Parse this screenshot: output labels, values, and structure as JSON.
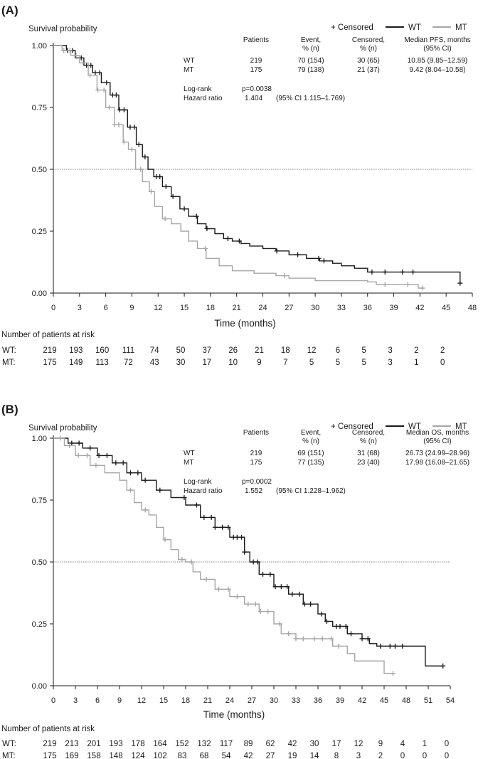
{
  "chart_data": [
    {
      "type": "line",
      "panel_label": "(A)",
      "ylabel": "Survival probability",
      "xlabel": "Time (months)",
      "xlim": [
        0,
        48
      ],
      "ylim": [
        0,
        1
      ],
      "xticks": [
        0,
        3,
        6,
        9,
        12,
        15,
        18,
        21,
        24,
        27,
        30,
        33,
        36,
        39,
        42,
        45,
        48
      ],
      "yticks": [
        "0.00",
        "0.25",
        "0.50",
        "0.75",
        "1.00"
      ],
      "reference_line_y": 0.5,
      "legend": {
        "censored": "+ Censored",
        "wt": "WT",
        "mt": "MT"
      },
      "colors": {
        "wt": "#1a1a1a",
        "mt": "#a6a6a6",
        "ref": "#555555"
      },
      "stats": {
        "headers": [
          "Patients",
          "Event,\n% (n)",
          "Censored,\n% (n)",
          "Median PFS, months\n(95% CI)"
        ],
        "rows": [
          {
            "label": "WT",
            "patients": "219",
            "event": "70 (154)",
            "censored": "30 (65)",
            "median": "10.85 (9.85–12.59)"
          },
          {
            "label": "MT",
            "patients": "175",
            "event": "79 (138)",
            "censored": "21 (37)",
            "median": "9.42 (8.04–10.58)"
          }
        ],
        "logrank_label": "Log-rank",
        "logrank_value": "p=0.0038",
        "hr_label": "Hazard ratio",
        "hr_value": "1.404",
        "hr_ci": "(95% CI 1.115–1.769)"
      },
      "series": [
        {
          "name": "WT",
          "points": [
            [
              0,
              1
            ],
            [
              1.5,
              0.98
            ],
            [
              2.5,
              0.95
            ],
            [
              3.5,
              0.92
            ],
            [
              4.5,
              0.89
            ],
            [
              5.5,
              0.85
            ],
            [
              6.5,
              0.8
            ],
            [
              7.5,
              0.74
            ],
            [
              8.5,
              0.67
            ],
            [
              9.5,
              0.6
            ],
            [
              10.2,
              0.55
            ],
            [
              10.85,
              0.5
            ],
            [
              11.5,
              0.47
            ],
            [
              12.5,
              0.43
            ],
            [
              13.5,
              0.39
            ],
            [
              14.5,
              0.34
            ],
            [
              15.5,
              0.31
            ],
            [
              16.5,
              0.28
            ],
            [
              17.5,
              0.26
            ],
            [
              18.5,
              0.24
            ],
            [
              19.5,
              0.22
            ],
            [
              20.5,
              0.21
            ],
            [
              21.5,
              0.2
            ],
            [
              22.5,
              0.19
            ],
            [
              24,
              0.18
            ],
            [
              25.5,
              0.17
            ],
            [
              27,
              0.155
            ],
            [
              29,
              0.14
            ],
            [
              30.5,
              0.13
            ],
            [
              32,
              0.12
            ],
            [
              33,
              0.11
            ],
            [
              34.5,
              0.1
            ],
            [
              36,
              0.085
            ],
            [
              46.5,
              0.085
            ],
            [
              46.6,
              0.04
            ]
          ],
          "censor_x": [
            1.6,
            2.2,
            3.2,
            3.8,
            4.3,
            4.8,
            5.3,
            6.1,
            6.8,
            7.2,
            7.6,
            8.1,
            8.8,
            9.3,
            9.8,
            10.5,
            11.8,
            12.2,
            12.9,
            13.7,
            15,
            16.4,
            17.6,
            20,
            21.3,
            25.6,
            28,
            30.4,
            31,
            36.5,
            38,
            40,
            41.2,
            46.6
          ]
        },
        {
          "name": "MT",
          "points": [
            [
              0,
              1
            ],
            [
              1,
              0.98
            ],
            [
              2,
              0.96
            ],
            [
              3,
              0.93
            ],
            [
              4,
              0.88
            ],
            [
              5,
              0.82
            ],
            [
              6,
              0.75
            ],
            [
              7,
              0.68
            ],
            [
              8,
              0.61
            ],
            [
              8.6,
              0.58
            ],
            [
              9.42,
              0.5
            ],
            [
              10.2,
              0.45
            ],
            [
              11,
              0.41
            ],
            [
              11.6,
              0.35
            ],
            [
              12.5,
              0.3
            ],
            [
              13.5,
              0.28
            ],
            [
              14.6,
              0.25
            ],
            [
              15.5,
              0.21
            ],
            [
              16.5,
              0.18
            ],
            [
              17.5,
              0.14
            ],
            [
              19,
              0.11
            ],
            [
              20.5,
              0.09
            ],
            [
              23,
              0.08
            ],
            [
              25.5,
              0.07
            ],
            [
              27,
              0.06
            ],
            [
              30,
              0.05
            ],
            [
              36,
              0.045
            ],
            [
              37,
              0.035
            ],
            [
              41,
              0.035
            ],
            [
              41.8,
              0.02
            ],
            [
              42.4,
              0.02
            ]
          ],
          "censor_x": [
            1.2,
            1.9,
            2.6,
            3.4,
            4.2,
            5.1,
            5.8,
            6.4,
            7,
            7.5,
            8.1,
            9,
            10,
            11.2,
            12.8,
            17.4,
            26.5,
            38,
            40.6,
            42.3
          ]
        }
      ],
      "risk_table": {
        "title": "Number of patients at risk",
        "timepoints": [
          0,
          3,
          6,
          9,
          12,
          15,
          18,
          21,
          24,
          27,
          30,
          33,
          36,
          39,
          42,
          45
        ],
        "rows": [
          {
            "label": "WT:",
            "values": [
              "219",
              "193",
              "160",
              "111",
              "74",
              "50",
              "37",
              "26",
              "21",
              "18",
              "12",
              "6",
              "5",
              "3",
              "2",
              "2"
            ]
          },
          {
            "label": "MT:",
            "values": [
              "175",
              "149",
              "113",
              "72",
              "43",
              "30",
              "17",
              "10",
              "9",
              "7",
              "5",
              "5",
              "5",
              "3",
              "1",
              "0"
            ]
          }
        ]
      }
    },
    {
      "type": "line",
      "panel_label": "(B)",
      "ylabel": "Survival probability",
      "xlabel": "Time (months)",
      "xlim": [
        0,
        54
      ],
      "ylim": [
        0,
        1
      ],
      "xticks": [
        0,
        3,
        6,
        9,
        12,
        15,
        18,
        21,
        24,
        27,
        30,
        33,
        36,
        39,
        42,
        45,
        48,
        51,
        54
      ],
      "yticks": [
        "0.00",
        "0.25",
        "0.50",
        "0.75",
        "1.00"
      ],
      "reference_line_y": 0.5,
      "legend": {
        "censored": "+ Censored",
        "wt": "WT",
        "mt": "MT"
      },
      "colors": {
        "wt": "#1a1a1a",
        "mt": "#a6a6a6",
        "ref": "#555555"
      },
      "stats": {
        "headers": [
          "Patients",
          "Event,\n% (n)",
          "Censored,\n% (n)",
          "Median OS, months\n(95% CI)"
        ],
        "rows": [
          {
            "label": "WT",
            "patients": "219",
            "event": "69 (151)",
            "censored": "31 (68)",
            "median": "26.73 (24.99–28.96)"
          },
          {
            "label": "MT",
            "patients": "175",
            "event": "77 (135)",
            "censored": "23 (40)",
            "median": "17.98 (16.08–21.65)"
          }
        ],
        "logrank_label": "Log-rank",
        "logrank_value": "p=0.0002",
        "hr_label": "Hazard ratio",
        "hr_value": "1.552",
        "hr_ci": "(95% CI 1.228–1.962)"
      },
      "series": [
        {
          "name": "WT",
          "points": [
            [
              0,
              1
            ],
            [
              2,
              0.98
            ],
            [
              4,
              0.96
            ],
            [
              6,
              0.93
            ],
            [
              8,
              0.9
            ],
            [
              10,
              0.86
            ],
            [
              12,
              0.83
            ],
            [
              14,
              0.79
            ],
            [
              16,
              0.76
            ],
            [
              18,
              0.73
            ],
            [
              20,
              0.68
            ],
            [
              22,
              0.64
            ],
            [
              24,
              0.6
            ],
            [
              26,
              0.54
            ],
            [
              26.73,
              0.5
            ],
            [
              28,
              0.45
            ],
            [
              30,
              0.4
            ],
            [
              32,
              0.37
            ],
            [
              34,
              0.33
            ],
            [
              36,
              0.29
            ],
            [
              37,
              0.26
            ],
            [
              38,
              0.24
            ],
            [
              40,
              0.21
            ],
            [
              42,
              0.19
            ],
            [
              43,
              0.17
            ],
            [
              44,
              0.16
            ],
            [
              50.5,
              0.16
            ],
            [
              50.6,
              0.08
            ],
            [
              53,
              0.08
            ]
          ],
          "censor_x": [
            2.5,
            3.5,
            5,
            6.2,
            7.3,
            8.5,
            9.5,
            10.5,
            11.5,
            12.5,
            14.5,
            17.8,
            19.5,
            20.5,
            21.5,
            22,
            23,
            23.8,
            24.5,
            25,
            25.6,
            26,
            27.2,
            27.8,
            28.5,
            29.5,
            30.2,
            31,
            31.8,
            32.5,
            33.5,
            34.2,
            35,
            36.5,
            37.2,
            38.5,
            39,
            39.8,
            40.5,
            42,
            42.8,
            44.5,
            45.8,
            46.5,
            47.5,
            53
          ]
        },
        {
          "name": "MT",
          "points": [
            [
              0,
              1
            ],
            [
              1.5,
              0.97
            ],
            [
              3,
              0.93
            ],
            [
              5,
              0.89
            ],
            [
              7,
              0.86
            ],
            [
              9,
              0.83
            ],
            [
              10,
              0.79
            ],
            [
              11,
              0.74
            ],
            [
              12,
              0.71
            ],
            [
              13,
              0.69
            ],
            [
              14,
              0.64
            ],
            [
              15,
              0.59
            ],
            [
              16,
              0.55
            ],
            [
              17,
              0.51
            ],
            [
              17.98,
              0.5
            ],
            [
              19,
              0.46
            ],
            [
              20,
              0.43
            ],
            [
              22,
              0.39
            ],
            [
              24,
              0.36
            ],
            [
              26,
              0.33
            ],
            [
              28,
              0.3
            ],
            [
              30,
              0.25
            ],
            [
              31,
              0.21
            ],
            [
              33,
              0.19
            ],
            [
              36,
              0.19
            ],
            [
              38,
              0.16
            ],
            [
              40,
              0.13
            ],
            [
              41,
              0.1
            ],
            [
              44,
              0.1
            ],
            [
              45,
              0.05
            ],
            [
              46,
              0.05
            ]
          ],
          "censor_x": [
            1,
            2.2,
            3.4,
            4.6,
            5.8,
            10.5,
            12.5,
            15.2,
            17.5,
            18.8,
            20.8,
            22.5,
            23.8,
            25,
            26.5,
            27.5,
            28.2,
            29.2,
            30.8,
            32,
            33,
            34,
            35.5,
            36.6,
            37.8,
            38.8,
            46.2
          ]
        }
      ],
      "risk_table": {
        "title": "Number of patients at risk",
        "timepoints": [
          0,
          3,
          6,
          9,
          12,
          15,
          18,
          21,
          24,
          27,
          30,
          33,
          36,
          39,
          42,
          45,
          48,
          51,
          54
        ],
        "rows": [
          {
            "label": "WT:",
            "values": [
              "219",
              "213",
              "201",
              "193",
              "178",
              "164",
              "152",
              "132",
              "117",
              "89",
              "62",
              "42",
              "30",
              "17",
              "12",
              "9",
              "4",
              "1",
              "0"
            ]
          },
          {
            "label": "MT:",
            "values": [
              "175",
              "169",
              "158",
              "148",
              "124",
              "102",
              "83",
              "68",
              "54",
              "42",
              "27",
              "19",
              "14",
              "8",
              "3",
              "2",
              "0",
              "0",
              "0"
            ]
          }
        ]
      }
    }
  ]
}
